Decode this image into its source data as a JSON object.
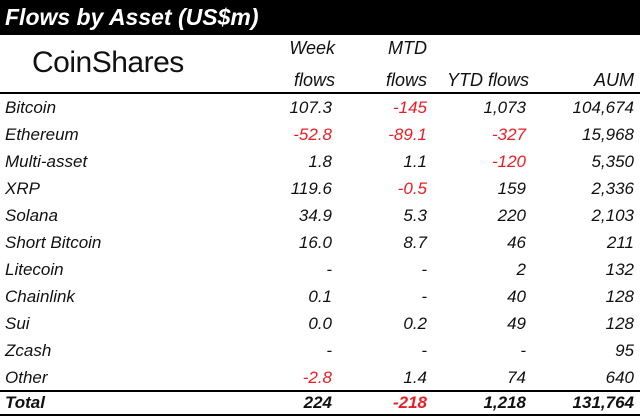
{
  "title": "Flows by Asset (US$m)",
  "brand": "CoinShares",
  "headers": {
    "week_line1": "Week",
    "week_line2": "flows",
    "mtd_line1": "MTD",
    "mtd_line2": "flows",
    "ytd": "YTD flows",
    "aum": "AUM"
  },
  "rows": [
    {
      "asset": "Bitcoin",
      "week": "107.3",
      "mtd": "-145",
      "ytd": "1,073",
      "aum": "104,674"
    },
    {
      "asset": "Ethereum",
      "week": "-52.8",
      "mtd": "-89.1",
      "ytd": "-327",
      "aum": "15,968"
    },
    {
      "asset": "Multi-asset",
      "week": "1.8",
      "mtd": "1.1",
      "ytd": "-120",
      "aum": "5,350"
    },
    {
      "asset": "XRP",
      "week": "119.6",
      "mtd": "-0.5",
      "ytd": "159",
      "aum": "2,336"
    },
    {
      "asset": "Solana",
      "week": "34.9",
      "mtd": "5.3",
      "ytd": "220",
      "aum": "2,103"
    },
    {
      "asset": "Short Bitcoin",
      "week": "16.0",
      "mtd": "8.7",
      "ytd": "46",
      "aum": "211"
    },
    {
      "asset": "Litecoin",
      "week": "-",
      "mtd": "-",
      "ytd": "2",
      "aum": "132"
    },
    {
      "asset": "Chainlink",
      "week": "0.1",
      "mtd": "-",
      "ytd": "40",
      "aum": "128"
    },
    {
      "asset": "Sui",
      "week": "0.0",
      "mtd": "0.2",
      "ytd": "49",
      "aum": "128"
    },
    {
      "asset": "Zcash",
      "week": "-",
      "mtd": "-",
      "ytd": "-",
      "aum": "95"
    },
    {
      "asset": "Other",
      "week": "-2.8",
      "mtd": "1.4",
      "ytd": "74",
      "aum": "640"
    }
  ],
  "total": {
    "asset": "Total",
    "week": "224",
    "mtd": "-218",
    "ytd": "1,218",
    "aum": "131,764"
  },
  "colors": {
    "negative": "#ed1c24",
    "text": "#111111",
    "title_background": "#000000",
    "title_text": "#ffffff"
  }
}
